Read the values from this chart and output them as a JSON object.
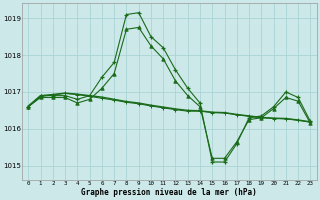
{
  "title": "Graphe pression niveau de la mer (hPa)",
  "bg_color": "#cce8e8",
  "grid_color": "#aad4d4",
  "line_color": "#1a6b1a",
  "ylim": [
    1014.6,
    1019.4
  ],
  "yticks": [
    1015,
    1016,
    1017,
    1018,
    1019
  ],
  "series1": [
    1016.6,
    1016.9,
    1016.9,
    1016.9,
    1016.8,
    1016.9,
    1017.4,
    1017.8,
    1019.1,
    1019.15,
    1018.5,
    1018.2,
    1017.6,
    1017.1,
    1016.7,
    1015.1,
    1015.1,
    1015.6,
    1016.3,
    1016.35,
    1016.6,
    1017.0,
    1016.85,
    1016.2
  ],
  "series2": [
    1016.6,
    1016.85,
    1016.85,
    1016.85,
    1016.7,
    1016.8,
    1017.1,
    1017.5,
    1018.7,
    1018.75,
    1018.25,
    1017.9,
    1017.3,
    1016.9,
    1016.6,
    1015.2,
    1015.2,
    1015.65,
    1016.25,
    1016.3,
    1016.55,
    1016.85,
    1016.75,
    1016.15
  ],
  "series3": [
    1016.6,
    1016.88,
    1016.92,
    1016.96,
    1016.93,
    1016.88,
    1016.83,
    1016.78,
    1016.72,
    1016.68,
    1016.62,
    1016.57,
    1016.52,
    1016.48,
    1016.48,
    1016.44,
    1016.43,
    1016.38,
    1016.34,
    1016.3,
    1016.28,
    1016.27,
    1016.23,
    1016.18
  ],
  "series4": [
    1016.62,
    1016.9,
    1016.93,
    1016.97,
    1016.94,
    1016.9,
    1016.86,
    1016.8,
    1016.74,
    1016.7,
    1016.64,
    1016.59,
    1016.54,
    1016.5,
    1016.49,
    1016.45,
    1016.44,
    1016.39,
    1016.35,
    1016.31,
    1016.29,
    1016.28,
    1016.24,
    1016.19
  ]
}
